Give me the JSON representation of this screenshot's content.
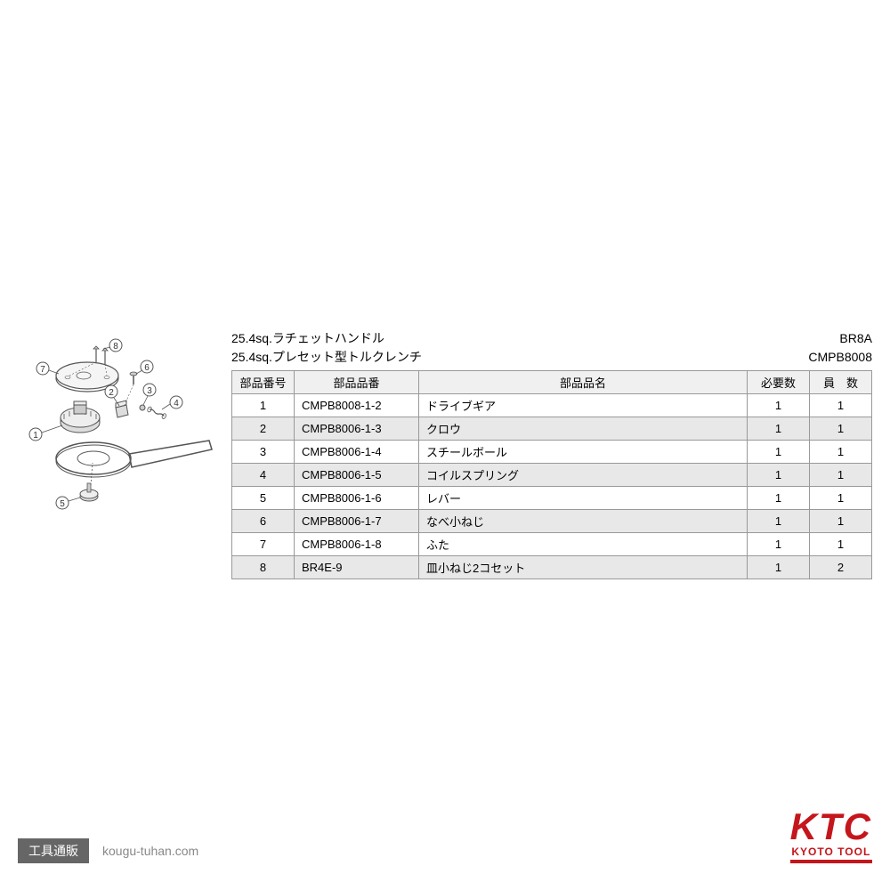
{
  "titles": {
    "line1": "25.4sq.ラチェットハンドル",
    "line2": "25.4sq.プレセット型トルクレンチ"
  },
  "codes": {
    "line1": "BR8A",
    "line2": "CMPB8008"
  },
  "table": {
    "headers": {
      "num": "部品番号",
      "part": "部品品番",
      "name": "部品品名",
      "required": "必要数",
      "quantity": "員　数"
    },
    "rows": [
      {
        "num": "1",
        "part": "CMPB8008-1-2",
        "name": "ドライブギア",
        "required": "1",
        "quantity": "1",
        "shaded": false
      },
      {
        "num": "2",
        "part": "CMPB8006-1-3",
        "name": "クロウ",
        "required": "1",
        "quantity": "1",
        "shaded": true
      },
      {
        "num": "3",
        "part": "CMPB8006-1-4",
        "name": "スチールボール",
        "required": "1",
        "quantity": "1",
        "shaded": false
      },
      {
        "num": "4",
        "part": "CMPB8006-1-5",
        "name": "コイルスプリング",
        "required": "1",
        "quantity": "1",
        "shaded": true
      },
      {
        "num": "5",
        "part": "CMPB8006-1-6",
        "name": "レバー",
        "required": "1",
        "quantity": "1",
        "shaded": false
      },
      {
        "num": "6",
        "part": "CMPB8006-1-7",
        "name": "なべ小ねじ",
        "required": "1",
        "quantity": "1",
        "shaded": true
      },
      {
        "num": "7",
        "part": "CMPB8006-1-8",
        "name": "ふた",
        "required": "1",
        "quantity": "1",
        "shaded": false
      },
      {
        "num": "8",
        "part": "BR4E-9",
        "name": "皿小ねじ2コセット",
        "required": "1",
        "quantity": "2",
        "shaded": true
      }
    ]
  },
  "diagram": {
    "callouts": [
      "1",
      "2",
      "3",
      "4",
      "5",
      "6",
      "7",
      "8"
    ]
  },
  "footer": {
    "badge": "工具通販",
    "url": "kougu-tuhan.com"
  },
  "logo": {
    "main": "KTC",
    "sub": "KYOTO TOOL"
  },
  "colors": {
    "ktc_red": "#c4161c",
    "shaded_row": "#e8e8e8",
    "header_bg": "#f0f0f0",
    "border": "#999999",
    "footer_badge": "#666666"
  }
}
